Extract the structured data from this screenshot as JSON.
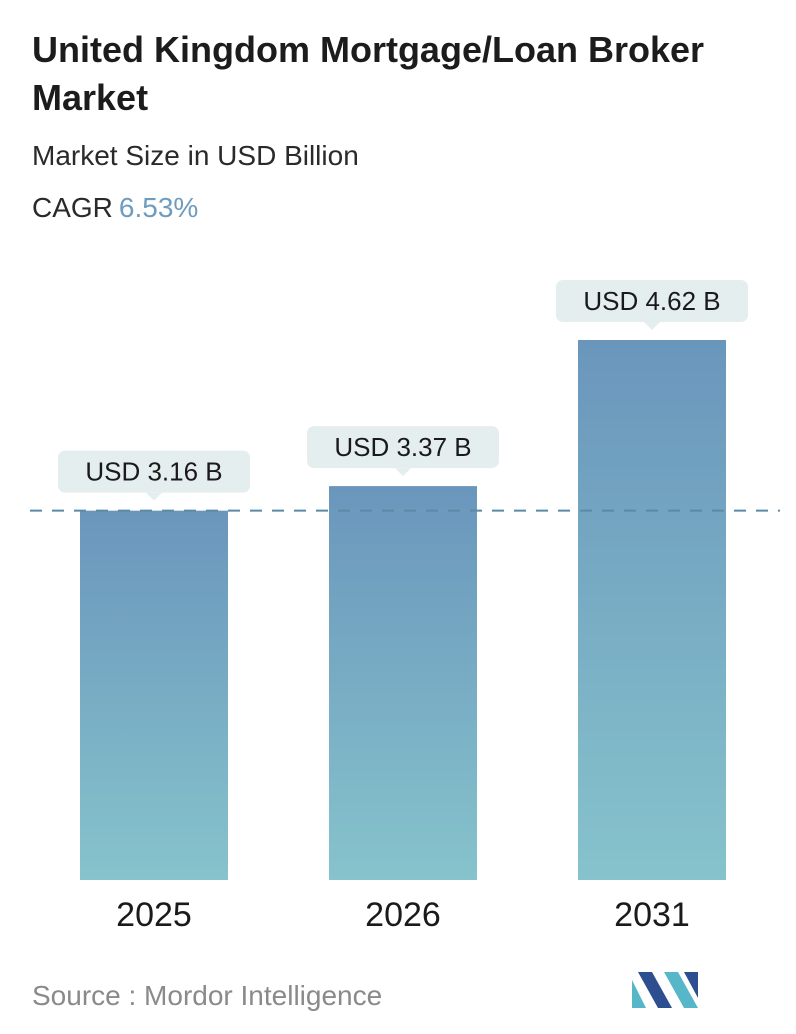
{
  "header": {
    "title": "United Kingdom Mortgage/Loan Broker Market",
    "subtitle": "Market Size in USD Billion",
    "cagr_label": "CAGR",
    "cagr_value": "6.53%"
  },
  "chart_data": {
    "type": "bar",
    "categories": [
      "2025",
      "2026",
      "2031"
    ],
    "values": [
      3.16,
      3.37,
      4.62
    ],
    "value_labels": [
      "USD 3.16 B",
      "USD 3.37 B",
      "USD 4.62 B"
    ],
    "ylim": [
      0,
      4.62
    ],
    "grid": false,
    "reference_line_value": 3.16,
    "colors": {
      "bar_top": "#6a96bc",
      "bar_bottom": "#86c3cc",
      "label_bg": "#e5eeee",
      "reference_line": "#5b8aa6"
    }
  },
  "footer": {
    "source": "Source :  Mordor Intelligence"
  },
  "logo": {
    "icon": "mordor-intelligence-logo-icon",
    "colors": [
      "#2e4f8f",
      "#57b7c8"
    ]
  }
}
